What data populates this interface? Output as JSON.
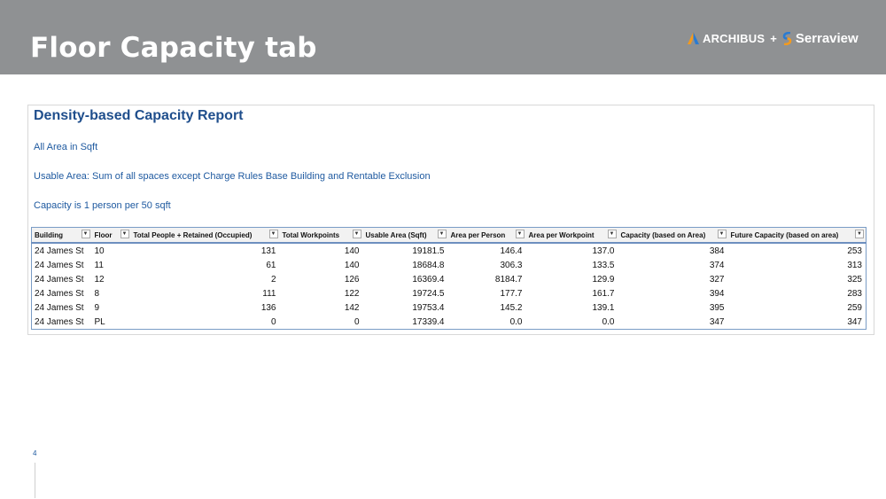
{
  "slide": {
    "title": "Floor Capacity tab",
    "page_number": "4"
  },
  "logo": {
    "brand1": "ARCHIBUS",
    "plus": "+",
    "brand2": "Serraview",
    "colors": {
      "blue": "#2b7bd1",
      "orange": "#f39a1e"
    }
  },
  "report": {
    "title": "Density-based Capacity Report",
    "notes": [
      "All Area in Sqft",
      "Usable Area: Sum of all spaces except Charge Rules Base Building and Rentable Exclusion",
      "Capacity is 1 person per 50 sqft"
    ],
    "columns": [
      "Building",
      "Floor",
      "Total People + Retained (Occupied)",
      "Total Workpoints",
      "Usable Area (Sqft)",
      "Area per Person",
      "Area per Workpoint",
      "Capacity (based on Area)",
      "Future Capacity (based on area)"
    ],
    "rows": [
      [
        "24 James St",
        "10",
        "131",
        "140",
        "19181.5",
        "146.4",
        "137.0",
        "384",
        "253"
      ],
      [
        "24 James St",
        "11",
        "61",
        "140",
        "18684.8",
        "306.3",
        "133.5",
        "374",
        "313"
      ],
      [
        "24 James St",
        "12",
        "2",
        "126",
        "16369.4",
        "8184.7",
        "129.9",
        "327",
        "325"
      ],
      [
        "24 James St",
        "8",
        "111",
        "122",
        "19724.5",
        "177.7",
        "161.7",
        "394",
        "283"
      ],
      [
        "24 James St",
        "9",
        "136",
        "142",
        "19753.4",
        "145.2",
        "139.1",
        "395",
        "259"
      ],
      [
        "24 James St",
        "PL",
        "0",
        "0",
        "17339.4",
        "0.0",
        "0.0",
        "347",
        "347"
      ]
    ]
  }
}
